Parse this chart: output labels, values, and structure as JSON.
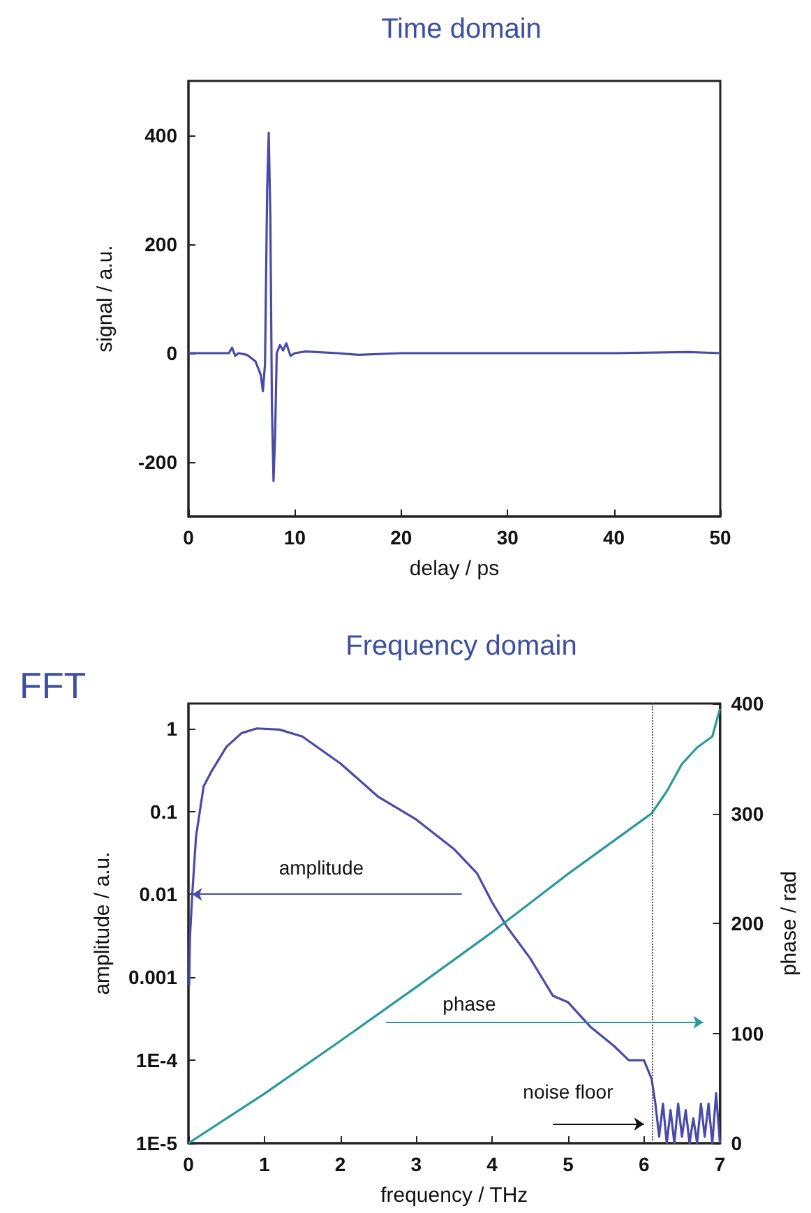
{
  "chart_data": [
    {
      "type": "line",
      "title": "Time domain",
      "xlabel": "delay / ps",
      "ylabel": "signal / a.u.",
      "xlim": [
        0,
        50
      ],
      "xticks": [
        0,
        10,
        20,
        30,
        40,
        50
      ],
      "ylim": [
        -300,
        500
      ],
      "yticks": [
        -200,
        0,
        200,
        400
      ],
      "grid": false,
      "marker": "none",
      "line_style": "solid",
      "series": [
        {
          "color": "#4a4aa8",
          "x": [
            0,
            3.8,
            4.1,
            4.4,
            4.7,
            5.5,
            6.3,
            6.8,
            7.0,
            7.2,
            7.4,
            7.55,
            7.7,
            7.85,
            8.0,
            8.15,
            8.3,
            8.6,
            8.9,
            9.2,
            9.6,
            10,
            11,
            12,
            14,
            16,
            20,
            30,
            40,
            47,
            50
          ],
          "values": [
            0,
            0,
            10,
            -5,
            0,
            -3,
            -15,
            -40,
            -70,
            -20,
            300,
            405,
            250,
            -100,
            -235,
            -150,
            0,
            15,
            5,
            18,
            -5,
            0,
            3,
            2,
            0,
            -3,
            0,
            0,
            0,
            2,
            0
          ]
        }
      ]
    },
    {
      "type": "line",
      "title": "Frequency domain",
      "xlabel": "frequency / THz",
      "ylabel": "amplitude / a.u.",
      "y2label": "phase / rad",
      "xlim": [
        0,
        7
      ],
      "xticks": [
        0,
        1,
        2,
        3,
        4,
        5,
        6,
        7
      ],
      "ylim": [
        1e-05,
        2
      ],
      "yticks": [
        {
          "value": 1e-05,
          "label": "1E-5"
        },
        {
          "value": 0.0001,
          "label": "1E-4"
        },
        {
          "value": 0.001,
          "label": "0.001"
        },
        {
          "value": 0.01,
          "label": "0.01"
        },
        {
          "value": 0.1,
          "label": "0.1"
        },
        {
          "value": 1,
          "label": "1"
        }
      ],
      "y2lim": [
        0,
        400
      ],
      "y2ticks": [
        0,
        100,
        200,
        300,
        400
      ],
      "log": "y",
      "grid": false,
      "marker": "none",
      "line_style": "solid",
      "annotations": [
        "FFT",
        "amplitude",
        "phase",
        "noise floor"
      ],
      "ref_lines": [
        {
          "axis": "x",
          "value": 6.1,
          "color": "#555555",
          "line_style": "dotted"
        }
      ],
      "series": [
        {
          "color": "#4a4aa8",
          "x": [
            0.01,
            0.02,
            0.05,
            0.1,
            0.2,
            0.3,
            0.5,
            0.7,
            0.9,
            1.2,
            1.5,
            2,
            2.5,
            3,
            3.5,
            3.8,
            4,
            4.2,
            4.5,
            4.8,
            5,
            5.3,
            5.6,
            5.8,
            6,
            6.1,
            6.15,
            6.2,
            6.25,
            6.3,
            6.35,
            6.4,
            6.45,
            6.5,
            6.55,
            6.6,
            6.65,
            6.7,
            6.75,
            6.8,
            6.85,
            6.9,
            6.95,
            7
          ],
          "values": [
            0.0008,
            0.003,
            0.01,
            0.05,
            0.2,
            0.3,
            0.6,
            0.88,
            1,
            0.97,
            0.8,
            0.38,
            0.15,
            0.08,
            0.035,
            0.018,
            0.008,
            0.004,
            0.0017,
            0.0006,
            0.0005,
            0.00025,
            0.00015,
            0.0001,
            0.0001,
            6e-05,
            3e-05,
            1.2e-05,
            3e-05,
            1e-05,
            2.5e-05,
            1e-05,
            3e-05,
            1.2e-05,
            2.5e-05,
            1e-05,
            2e-05,
            1e-05,
            3e-05,
            1.2e-05,
            3e-05,
            1e-05,
            4e-05,
            1e-05
          ]
        },
        {
          "color": "#2a9a9a",
          "axis": "y2",
          "x": [
            0,
            1,
            2,
            3,
            4,
            5,
            6,
            6.1,
            6.3,
            6.5,
            6.7,
            6.9,
            7
          ],
          "values": [
            0,
            45,
            93,
            142,
            192,
            245,
            295,
            300,
            320,
            345,
            360,
            370,
            395
          ]
        }
      ]
    }
  ]
}
